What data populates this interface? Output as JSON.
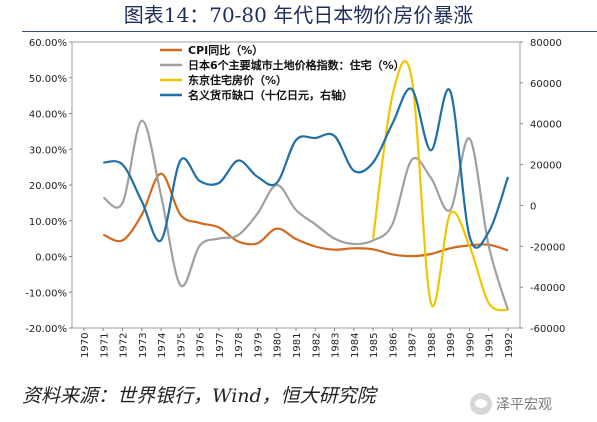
{
  "title": "图表14：70-80 年代日本物价房价暴涨",
  "source": "资料来源：世界银行，Wind，恒大研究院",
  "watermark": {
    "text": "泽平宏观",
    "icon": "wechat-icon"
  },
  "chart_data": {
    "type": "line",
    "x": [
      "1970",
      "1971",
      "1972",
      "1973",
      "1974",
      "1975",
      "1976",
      "1977",
      "1978",
      "1979",
      "1980",
      "1981",
      "1982",
      "1983",
      "1984",
      "1985",
      "1986",
      "1987",
      "1988",
      "1989",
      "1990",
      "1991",
      "1992"
    ],
    "left_axis": {
      "ticks": [
        "60.00%",
        "50.00%",
        "40.00%",
        "30.00%",
        "20.00%",
        "10.00%",
        "0.00%",
        "-10.00%",
        "-20.00%"
      ],
      "ylim": [
        -20,
        60
      ]
    },
    "right_axis": {
      "ticks": [
        "80000",
        "60000",
        "40000",
        "20000",
        "0",
        "-20000",
        "-40000",
        "-60000"
      ],
      "ylim": [
        -60000,
        80000
      ]
    },
    "grid": false,
    "legend_position": "top-left",
    "series": [
      {
        "name": "CPI同比（%）",
        "axis": "left",
        "color": "#d2691e",
        "x": [
          1971,
          1972,
          1973,
          1974,
          1975,
          1976,
          1977,
          1978,
          1979,
          1980,
          1981,
          1982,
          1983,
          1984,
          1985,
          1986,
          1987,
          1988,
          1989,
          1990,
          1991,
          1992
        ],
        "values": [
          6.1,
          4.5,
          11.7,
          23.2,
          11.7,
          9.4,
          8.1,
          4.2,
          3.7,
          7.8,
          4.9,
          2.8,
          1.9,
          2.3,
          2.0,
          0.6,
          0.1,
          0.7,
          2.3,
          3.1,
          3.3,
          1.7
        ]
      },
      {
        "name": "日本6个主要城市土地价格指数：住宅（%）",
        "axis": "left",
        "color": "#a0a0a0",
        "x": [
          1971,
          1972,
          1973,
          1974,
          1975,
          1976,
          1977,
          1978,
          1979,
          1980,
          1981,
          1982,
          1983,
          1984,
          1985,
          1986,
          1987,
          1988,
          1989,
          1990,
          1991,
          1992
        ],
        "values": [
          16.5,
          15.0,
          38.0,
          17.0,
          -8.0,
          3.0,
          5.0,
          6.0,
          12.0,
          20.0,
          13.0,
          9.0,
          5.0,
          3.5,
          4.5,
          9.0,
          27.0,
          22.0,
          13.0,
          33.0,
          3.0,
          -15.0
        ]
      },
      {
        "name": "东京住宅房价（%）",
        "axis": "left",
        "color": "#f2c500",
        "x": [
          1985,
          1986,
          1987,
          1988,
          1989,
          1990,
          1991,
          1992
        ],
        "values": [
          5.0,
          45.0,
          50.0,
          -13.0,
          12.0,
          3.0,
          -13.0,
          -15.0
        ]
      },
      {
        "name": "名义货币缺口（十亿日元，右轴）",
        "axis": "right",
        "color": "#1f6fa8",
        "x": [
          1971,
          1972,
          1973,
          1974,
          1975,
          1976,
          1977,
          1978,
          1979,
          1980,
          1981,
          1982,
          1983,
          1984,
          1985,
          1986,
          1987,
          1988,
          1989,
          1990,
          1991,
          1992
        ],
        "values": [
          21000,
          20000,
          2000,
          -17000,
          22000,
          12000,
          11000,
          22000,
          14000,
          11000,
          32000,
          33000,
          34000,
          17000,
          21000,
          40000,
          57000,
          27000,
          56000,
          -15000,
          -13000,
          14000
        ]
      }
    ]
  }
}
